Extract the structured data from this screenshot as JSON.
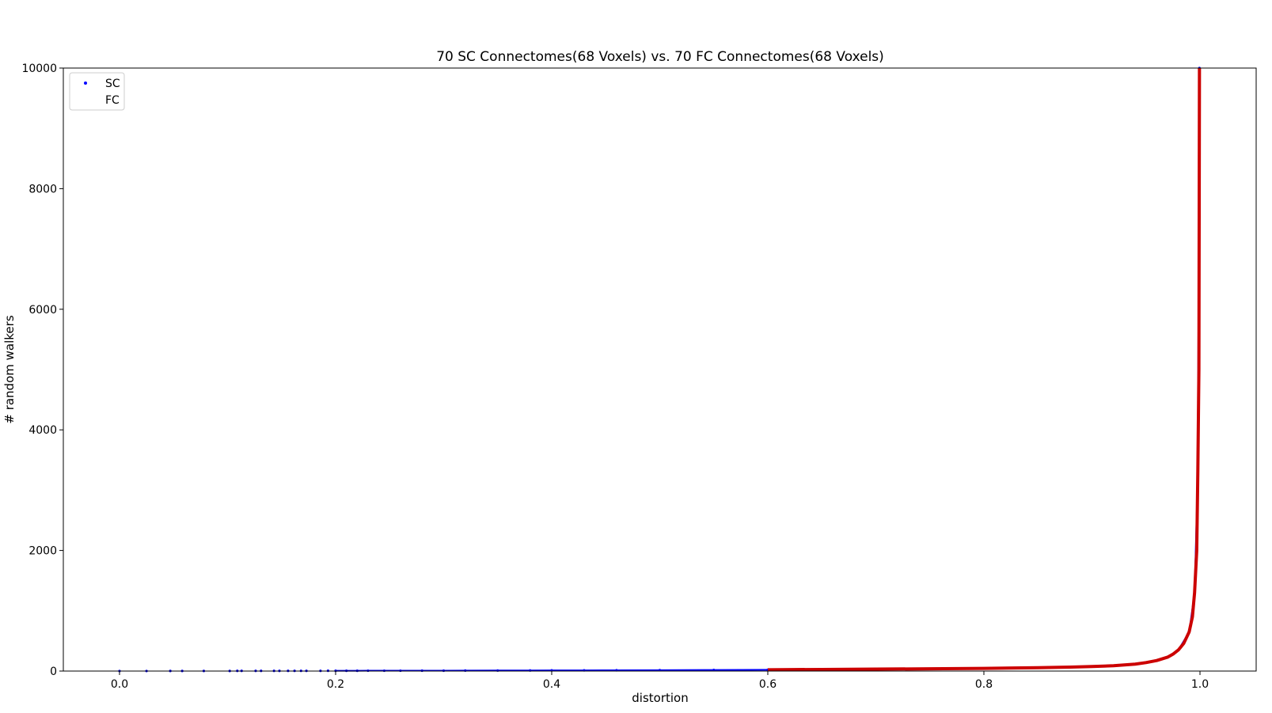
{
  "chart_data": {
    "type": "scatter",
    "title": "70 SC Connectomes(68 Voxels) vs. 70 FC Connectomes(68 Voxels)",
    "xlabel": "distortion",
    "ylabel": "# random walkers",
    "xlim": [
      -0.052,
      1.052
    ],
    "ylim": [
      0,
      10000
    ],
    "xticks": [
      0.0,
      0.2,
      0.4,
      0.6,
      0.8,
      1.0
    ],
    "xtick_labels": [
      "0.0",
      "0.2",
      "0.4",
      "0.6",
      "0.8",
      "1.0"
    ],
    "yticks": [
      0,
      2000,
      4000,
      6000,
      8000,
      10000
    ],
    "ytick_labels": [
      "0",
      "2000",
      "4000",
      "6000",
      "8000",
      "10000"
    ],
    "grid": false,
    "legend_position": "top-left",
    "series": [
      {
        "name": "SC",
        "color": "#0000ff",
        "marker": "dot",
        "points": [
          [
            0.0,
            1
          ],
          [
            0.025,
            1
          ],
          [
            0.047,
            2
          ],
          [
            0.058,
            2
          ],
          [
            0.078,
            2
          ],
          [
            0.102,
            2
          ],
          [
            0.109,
            3
          ],
          [
            0.113,
            3
          ],
          [
            0.126,
            3
          ],
          [
            0.131,
            3
          ],
          [
            0.143,
            3
          ],
          [
            0.148,
            3
          ],
          [
            0.156,
            4
          ],
          [
            0.162,
            4
          ],
          [
            0.168,
            4
          ],
          [
            0.173,
            4
          ],
          [
            0.186,
            4
          ],
          [
            0.193,
            5
          ],
          [
            0.2,
            5
          ],
          [
            0.21,
            5
          ],
          [
            0.22,
            5
          ],
          [
            0.23,
            6
          ],
          [
            0.245,
            6
          ],
          [
            0.26,
            6
          ],
          [
            0.28,
            7
          ],
          [
            0.3,
            7
          ],
          [
            0.32,
            8
          ],
          [
            0.35,
            9
          ],
          [
            0.38,
            10
          ],
          [
            0.4,
            11
          ],
          [
            0.43,
            12
          ],
          [
            0.46,
            13
          ],
          [
            0.5,
            15
          ],
          [
            0.55,
            18
          ],
          [
            0.6,
            22
          ],
          [
            0.65,
            27
          ],
          [
            0.7,
            32
          ],
          [
            0.75,
            38
          ],
          [
            0.8,
            45
          ],
          [
            0.85,
            55
          ],
          [
            0.9,
            75
          ],
          [
            0.93,
            100
          ],
          [
            0.95,
            140
          ],
          [
            0.97,
            230
          ],
          [
            0.98,
            350
          ],
          [
            0.99,
            650
          ],
          [
            0.995,
            1300
          ],
          [
            0.998,
            3300
          ],
          [
            0.9995,
            10000
          ]
        ]
      },
      {
        "name": "FC",
        "color": "#cc0000",
        "marker": "line",
        "points": [
          [
            0.6,
            22
          ],
          [
            0.65,
            27
          ],
          [
            0.7,
            32
          ],
          [
            0.75,
            38
          ],
          [
            0.8,
            45
          ],
          [
            0.85,
            55
          ],
          [
            0.88,
            65
          ],
          [
            0.9,
            75
          ],
          [
            0.92,
            88
          ],
          [
            0.94,
            115
          ],
          [
            0.95,
            140
          ],
          [
            0.96,
            175
          ],
          [
            0.97,
            230
          ],
          [
            0.975,
            280
          ],
          [
            0.98,
            350
          ],
          [
            0.985,
            460
          ],
          [
            0.99,
            650
          ],
          [
            0.993,
            900
          ],
          [
            0.995,
            1300
          ],
          [
            0.997,
            2000
          ],
          [
            0.998,
            3300
          ],
          [
            0.999,
            5000
          ],
          [
            0.9995,
            10000
          ]
        ]
      }
    ]
  }
}
